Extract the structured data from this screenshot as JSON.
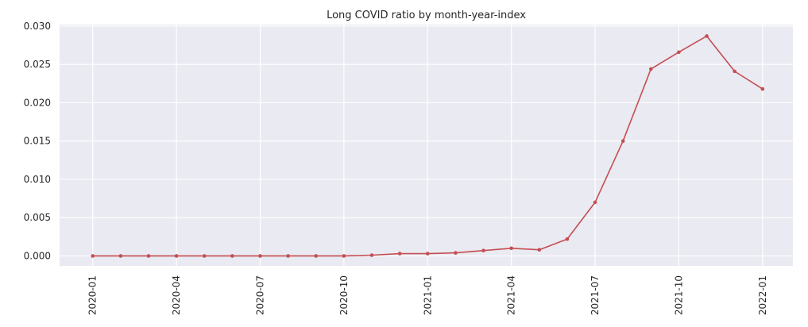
{
  "chart_data": {
    "type": "line",
    "title": "Long COVID ratio by month-year-index",
    "xlabel": "",
    "ylabel": "",
    "x": [
      "2020-01",
      "2020-02",
      "2020-03",
      "2020-04",
      "2020-05",
      "2020-06",
      "2020-07",
      "2020-08",
      "2020-09",
      "2020-10",
      "2020-11",
      "2020-12",
      "2021-01",
      "2021-02",
      "2021-03",
      "2021-04",
      "2021-05",
      "2021-06",
      "2021-07",
      "2021-08",
      "2021-09",
      "2021-10",
      "2021-11",
      "2021-12",
      "2022-01"
    ],
    "series": [
      {
        "values": [
          0.0,
          0.0,
          0.0,
          0.0,
          0.0,
          0.0,
          0.0,
          0.0,
          0.0,
          0.0,
          0.0001,
          0.0003,
          0.0003,
          0.0004,
          0.0007,
          0.001,
          0.0008,
          0.0022,
          0.007,
          0.015,
          0.0244,
          0.0266,
          0.0287,
          0.0241,
          0.0218
        ],
        "color": "#c44e52"
      }
    ],
    "x_ticks": [
      "2020-01",
      "2020-04",
      "2020-07",
      "2020-10",
      "2021-01",
      "2021-04",
      "2021-07",
      "2021-10",
      "2022-01"
    ],
    "y_ticks": [
      "0.000",
      "0.005",
      "0.010",
      "0.015",
      "0.020",
      "0.025",
      "0.030"
    ],
    "ylim": [
      -0.0013,
      0.0302
    ],
    "grid": true,
    "background": "#eaeaf2"
  }
}
